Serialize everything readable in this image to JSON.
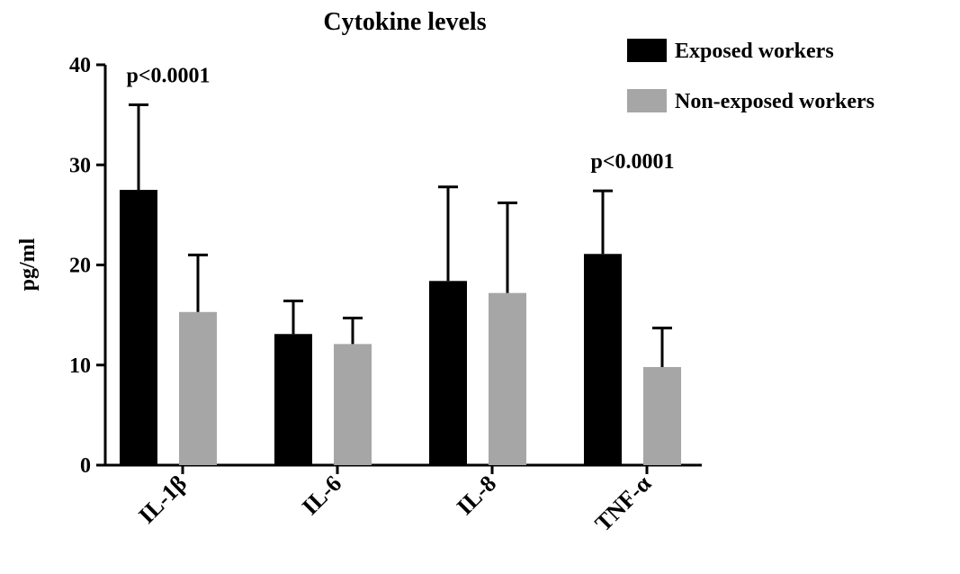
{
  "chart_data": {
    "type": "bar",
    "title": "Cytokine levels",
    "xlabel": "",
    "ylabel": "pg/ml",
    "ylim": [
      0,
      40
    ],
    "yticks": [
      0,
      10,
      20,
      30,
      40
    ],
    "grid": false,
    "legend_position": "top-right",
    "categories": [
      "IL-1β",
      "IL-6",
      "IL-8",
      "TNF-α"
    ],
    "series": [
      {
        "name": "Exposed workers",
        "color": "#000000",
        "values": [
          27.5,
          13.1,
          18.4,
          21.1
        ],
        "error": [
          8.5,
          3.3,
          9.4,
          6.3
        ]
      },
      {
        "name": "Non-exposed workers",
        "color": "#a6a6a6",
        "values": [
          15.3,
          12.1,
          17.2,
          9.8
        ],
        "error": [
          5.7,
          2.6,
          9.0,
          3.9
        ]
      }
    ],
    "annotations": [
      {
        "category": "IL-1β",
        "text": "p<0.0001"
      },
      {
        "category": "TNF-α",
        "text": "p<0.0001"
      }
    ]
  }
}
